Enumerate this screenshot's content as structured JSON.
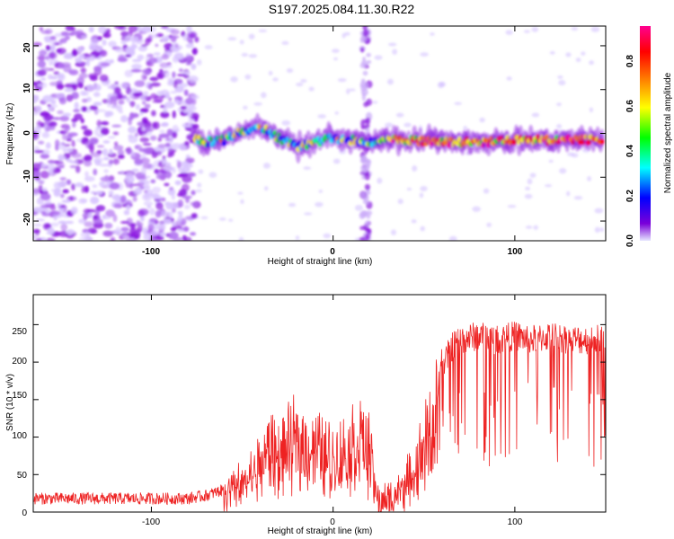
{
  "figure_title": "S197.2025.084.11.30.R22",
  "chart_data": [
    {
      "type": "heatmap",
      "xlabel": "Height of straight line (km)",
      "ylabel": "Frequency (Hz)",
      "xlim": [
        -165,
        150
      ],
      "ylim": [
        -24.5,
        24.5
      ],
      "x_ticks": [
        "-100",
        "0",
        "100"
      ],
      "y_ticks": [
        "20",
        "10",
        "0",
        "-10",
        "-20"
      ],
      "colorbar": {
        "label": "Normalized spectral amplitude",
        "range": [
          0,
          0.95
        ],
        "ticks": [
          "0.0",
          "0.2",
          "0.4",
          "0.6",
          "0.8"
        ],
        "colors": [
          "#e6e6ff",
          "#7a00d9",
          "#0000ff",
          "#00ffff",
          "#00ff00",
          "#ffff00",
          "#ff8000",
          "#ff0000",
          "#ff0090"
        ]
      },
      "features": {
        "noise_region_x": [
          -165,
          -75
        ],
        "signal_line": {
          "x": [
            -76,
            -70,
            -60,
            -50,
            -40,
            -30,
            -20,
            -10,
            0,
            10,
            20,
            30,
            40,
            60,
            80,
            100,
            120,
            148
          ],
          "y": [
            -1,
            -2,
            -1.5,
            0.5,
            1.5,
            -1,
            -3,
            -2,
            -1,
            -1.5,
            -2,
            -1.5,
            -1.5,
            -2,
            -2,
            -1.5,
            -1.5,
            -1.5
          ]
        },
        "vertical_band_x": 18
      }
    },
    {
      "type": "line",
      "xlabel": "Height of straight line (km)",
      "ylabel": "SNR (10 * v/v)",
      "xlim": [
        -165,
        150
      ],
      "ylim": [
        0,
        290
      ],
      "x_ticks": [
        "-100",
        "0",
        "100"
      ],
      "y_ticks": [
        "250",
        "200",
        "150",
        "100",
        "50",
        "0"
      ],
      "series": [
        {
          "color": "#ee2222",
          "envelope_x": [
            -165,
            -80,
            -70,
            -60,
            -50,
            -40,
            -35,
            -30,
            -20,
            -10,
            0,
            10,
            15,
            20,
            25,
            30,
            40,
            45,
            50,
            55,
            60,
            65,
            70,
            80,
            90,
            100,
            110,
            120,
            130,
            140,
            150
          ],
          "envelope_y": [
            18,
            18,
            22,
            30,
            45,
            80,
            110,
            95,
            120,
            110,
            90,
            110,
            130,
            100,
            15,
            20,
            45,
            70,
            110,
            150,
            190,
            220,
            230,
            235,
            230,
            235,
            230,
            235,
            230,
            230,
            232
          ]
        }
      ]
    }
  ]
}
